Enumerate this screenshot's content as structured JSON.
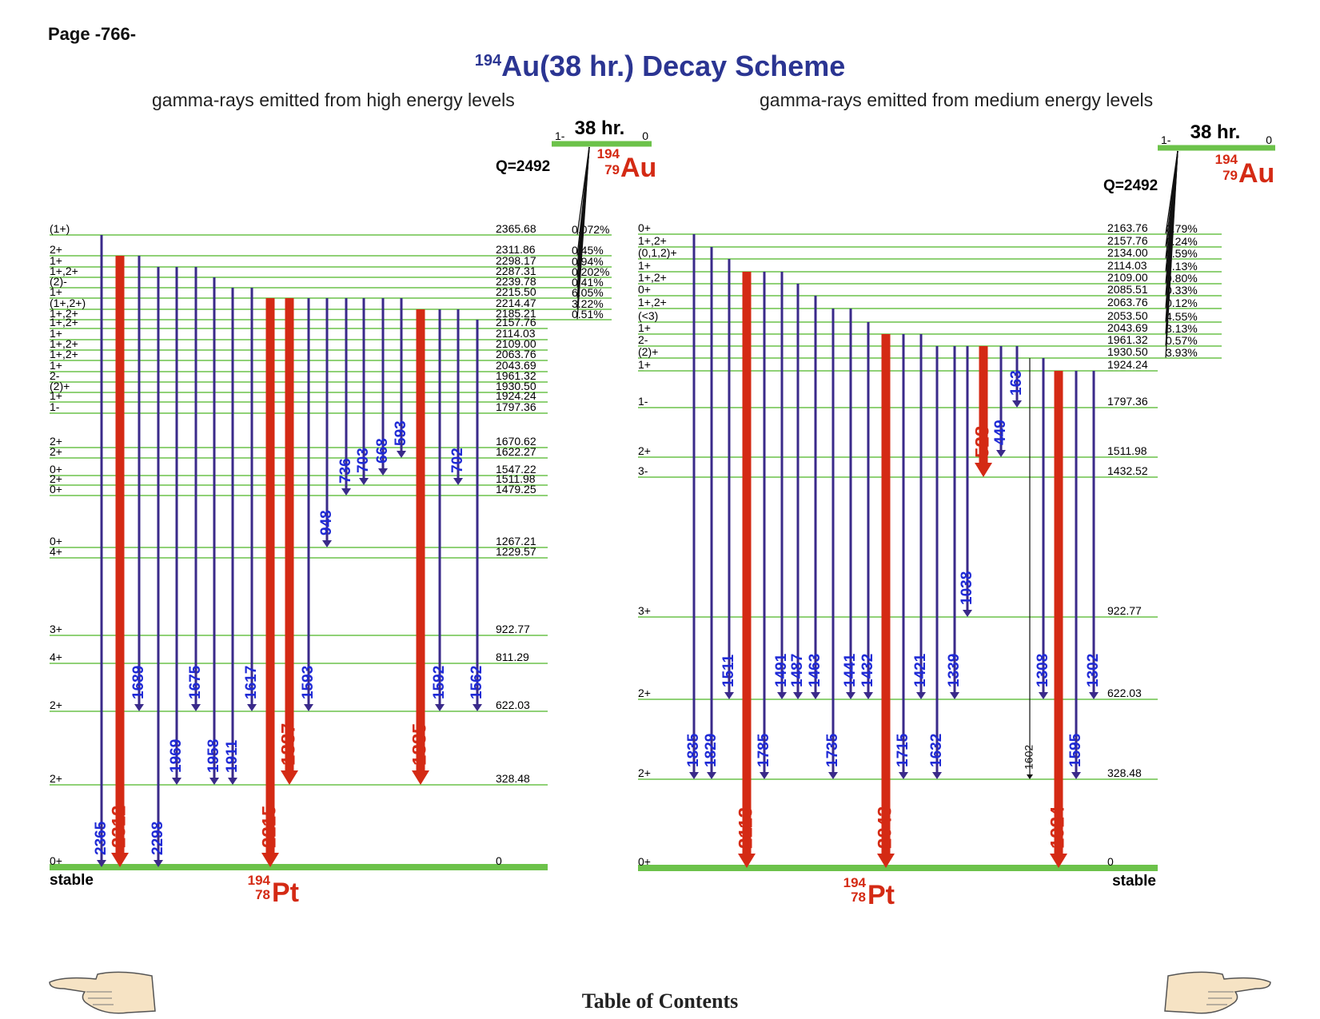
{
  "page_label": "Page -766-",
  "title": {
    "mass": "194",
    "main": "Au(38 hr.) Decay Scheme"
  },
  "subtitle_left": "gamma-rays emitted from high energy levels",
  "subtitle_right": "gamma-rays emitted from medium energy levels",
  "toc_label": "Table of Contents",
  "colors": {
    "level": "#6cc24a",
    "weak": "#3a2a8a",
    "strong": "#d42a14",
    "label_weak": "#1f2ad6",
    "title": "#2b3592"
  },
  "panels": [
    {
      "parent": {
        "halflife": "38 hr.",
        "spin": "1-",
        "energy": "0",
        "mass": "194",
        "z": "79",
        "symbol": "Au",
        "q": "Q=2492"
      },
      "daughter": {
        "mass": "194",
        "z": "78",
        "symbol": "Pt",
        "stable": "stable"
      },
      "levels": [
        {
          "e": "2365.68",
          "s": "(1+)",
          "b": "0.072%"
        },
        {
          "e": "2311.86",
          "s": "2+",
          "b": "0.45%"
        },
        {
          "e": "2298.17",
          "s": "1+",
          "b": "0.94%"
        },
        {
          "e": "2287.31",
          "s": "1+,2+",
          "b": "0.202%"
        },
        {
          "e": "2239.78",
          "s": "(2)-",
          "b": "0.41%"
        },
        {
          "e": "2215.50",
          "s": "1+",
          "b": "6.05%"
        },
        {
          "e": "2214.47",
          "s": "(1+,2+)",
          "b": "3.22%"
        },
        {
          "e": "2185.21",
          "s": "1+,2+",
          "b": "0.51%"
        },
        {
          "e": "2157.76",
          "s": "1+,2+",
          "b": ""
        },
        {
          "e": "2114.03",
          "s": "1+",
          "b": ""
        },
        {
          "e": "2109.00",
          "s": "1+,2+",
          "b": ""
        },
        {
          "e": "2063.76",
          "s": "1+,2+",
          "b": ""
        },
        {
          "e": "2043.69",
          "s": "1+",
          "b": ""
        },
        {
          "e": "1961.32",
          "s": "2-",
          "b": ""
        },
        {
          "e": "1930.50",
          "s": "(2)+",
          "b": ""
        },
        {
          "e": "1924.24",
          "s": "1+",
          "b": ""
        },
        {
          "e": "1797.36",
          "s": "1-",
          "b": ""
        },
        {
          "e": "1670.62",
          "s": "2+",
          "b": ""
        },
        {
          "e": "1622.27",
          "s": "2+",
          "b": ""
        },
        {
          "e": "1547.22",
          "s": "0+",
          "b": ""
        },
        {
          "e": "1511.98",
          "s": "2+",
          "b": ""
        },
        {
          "e": "1479.25",
          "s": "0+",
          "b": ""
        },
        {
          "e": "1267.21",
          "s": "0+",
          "b": ""
        },
        {
          "e": "1229.57",
          "s": "4+",
          "b": ""
        },
        {
          "e": "922.77",
          "s": "3+",
          "b": ""
        },
        {
          "e": "811.29",
          "s": "4+",
          "b": ""
        },
        {
          "e": "622.03",
          "s": "2+",
          "b": ""
        },
        {
          "e": "328.48",
          "s": "2+",
          "b": ""
        },
        {
          "e": "0",
          "s": "0+",
          "b": ""
        }
      ],
      "gammas": [
        {
          "label": "2365",
          "from": "2365.68",
          "to": "0",
          "strong": false
        },
        {
          "label": "2312",
          "from": "2311.86",
          "to": "0",
          "strong": true
        },
        {
          "label": "1689",
          "from": "2311.86",
          "to": "622.03",
          "strong": false
        },
        {
          "label": "2298",
          "from": "2298.17",
          "to": "0",
          "strong": false
        },
        {
          "label": "1969",
          "from": "2298.17",
          "to": "328.48",
          "strong": false
        },
        {
          "label": "1675",
          "from": "2298.17",
          "to": "622.03",
          "strong": false
        },
        {
          "label": "1958",
          "from": "2287.31",
          "to": "328.48",
          "strong": false
        },
        {
          "label": "1911",
          "from": "2239.78",
          "to": "328.48",
          "strong": false
        },
        {
          "label": "1617",
          "from": "2239.78",
          "to": "622.03",
          "strong": false
        },
        {
          "label": "2215",
          "from": "2215.50",
          "to": "0",
          "strong": true
        },
        {
          "label": "1887",
          "from": "2215.50",
          "to": "328.48",
          "strong": true
        },
        {
          "label": "1593",
          "from": "2215.50",
          "to": "622.03",
          "strong": false
        },
        {
          "label": "948",
          "from": "2215.50",
          "to": "1267.21",
          "strong": false
        },
        {
          "label": "736",
          "from": "2215.50",
          "to": "1479.25",
          "strong": false
        },
        {
          "label": "703",
          "from": "2215.50",
          "to": "1511.98",
          "strong": false
        },
        {
          "label": "668",
          "from": "2215.50",
          "to": "1547.22",
          "strong": false
        },
        {
          "label": "593",
          "from": "2215.50",
          "to": "1622.27",
          "strong": false
        },
        {
          "label": "1885",
          "from": "2214.47",
          "to": "328.48",
          "strong": true
        },
        {
          "label": "1592",
          "from": "2214.47",
          "to": "622.03",
          "strong": false
        },
        {
          "label": "702",
          "from": "2214.47",
          "to": "1511.98",
          "strong": false
        },
        {
          "label": "1562",
          "from": "2185.21",
          "to": "622.03",
          "strong": false
        }
      ]
    },
    {
      "parent": {
        "halflife": "38 hr.",
        "spin": "1-",
        "energy": "0",
        "mass": "194",
        "z": "79",
        "symbol": "Au",
        "q": "Q=2492"
      },
      "daughter": {
        "mass": "194",
        "z": "78",
        "symbol": "Pt",
        "stable": "stable"
      },
      "levels": [
        {
          "e": "2163.76",
          "s": "0+",
          "b": "0.79%"
        },
        {
          "e": "2157.76",
          "s": "1+,2+",
          "b": "0.24%"
        },
        {
          "e": "2134.00",
          "s": "(0,1,2)+",
          "b": "0.59%"
        },
        {
          "e": "2114.03",
          "s": "1+",
          "b": "0.13%"
        },
        {
          "e": "2109.00",
          "s": "1+,2+",
          "b": "0.80%"
        },
        {
          "e": "2085.51",
          "s": "0+",
          "b": "0.33%"
        },
        {
          "e": "2063.76",
          "s": "1+,2+",
          "b": "0.12%"
        },
        {
          "e": "2053.50",
          "s": "(<3)",
          "b": "4.55%"
        },
        {
          "e": "2043.69",
          "s": "1+",
          "b": "3.13%"
        },
        {
          "e": "1961.32",
          "s": "2-",
          "b": "0.57%"
        },
        {
          "e": "1930.50",
          "s": "(2)+",
          "b": "3.93%"
        },
        {
          "e": "1924.24",
          "s": "1+",
          "b": ""
        },
        {
          "e": "1797.36",
          "s": "1-",
          "b": ""
        },
        {
          "e": "1511.98",
          "s": "2+",
          "b": ""
        },
        {
          "e": "1432.52",
          "s": "3-",
          "b": ""
        },
        {
          "e": "922.77",
          "s": "3+",
          "b": ""
        },
        {
          "e": "622.03",
          "s": "2+",
          "b": ""
        },
        {
          "e": "328.48",
          "s": "2+",
          "b": ""
        },
        {
          "e": "0",
          "s": "0+",
          "b": ""
        }
      ],
      "gammas": [
        {
          "label": "1835",
          "from": "2163.76",
          "to": "328.48",
          "strong": false
        },
        {
          "label": "1829",
          "from": "2157.76",
          "to": "328.48",
          "strong": false
        },
        {
          "label": "1511",
          "from": "2134.00",
          "to": "622.03",
          "strong": false
        },
        {
          "label": "2113",
          "from": "2114.03",
          "to": "0",
          "strong": true
        },
        {
          "label": "1785",
          "from": "2114.03",
          "to": "328.48",
          "strong": false
        },
        {
          "label": "1491",
          "from": "2114.03",
          "to": "622.03",
          "strong": false
        },
        {
          "label": "1487",
          "from": "2109.00",
          "to": "622.03",
          "strong": false
        },
        {
          "label": "1463",
          "from": "2085.51",
          "to": "622.03",
          "strong": false
        },
        {
          "label": "1735",
          "from": "2063.76",
          "to": "328.48",
          "strong": false
        },
        {
          "label": "1441",
          "from": "2063.76",
          "to": "622.03",
          "strong": false
        },
        {
          "label": "1432",
          "from": "2053.50",
          "to": "622.03",
          "strong": false
        },
        {
          "label": "2043",
          "from": "2043.69",
          "to": "0",
          "strong": true
        },
        {
          "label": "1715",
          "from": "2043.69",
          "to": "328.48",
          "strong": false
        },
        {
          "label": "1421",
          "from": "2043.69",
          "to": "622.03",
          "strong": false
        },
        {
          "label": "1632",
          "from": "1961.32",
          "to": "328.48",
          "strong": false
        },
        {
          "label": "1339",
          "from": "1961.32",
          "to": "622.03",
          "strong": false
        },
        {
          "label": "1038",
          "from": "1961.32",
          "to": "922.77",
          "strong": false
        },
        {
          "label": "528",
          "from": "1961.32",
          "to": "1432.52",
          "strong": true
        },
        {
          "label": "449",
          "from": "1961.32",
          "to": "1511.98",
          "strong": false
        },
        {
          "label": "163",
          "from": "1961.32",
          "to": "1797.36",
          "strong": false
        },
        {
          "label": "1602",
          "from": "1930.50",
          "to": "328.48",
          "strong": false,
          "thin": true
        },
        {
          "label": "1308",
          "from": "1930.50",
          "to": "622.03",
          "strong": false
        },
        {
          "label": "1924",
          "from": "1924.24",
          "to": "0",
          "strong": true
        },
        {
          "label": "1595",
          "from": "1924.24",
          "to": "328.48",
          "strong": false
        },
        {
          "label": "1302",
          "from": "1924.24",
          "to": "622.03",
          "strong": false
        }
      ]
    }
  ]
}
